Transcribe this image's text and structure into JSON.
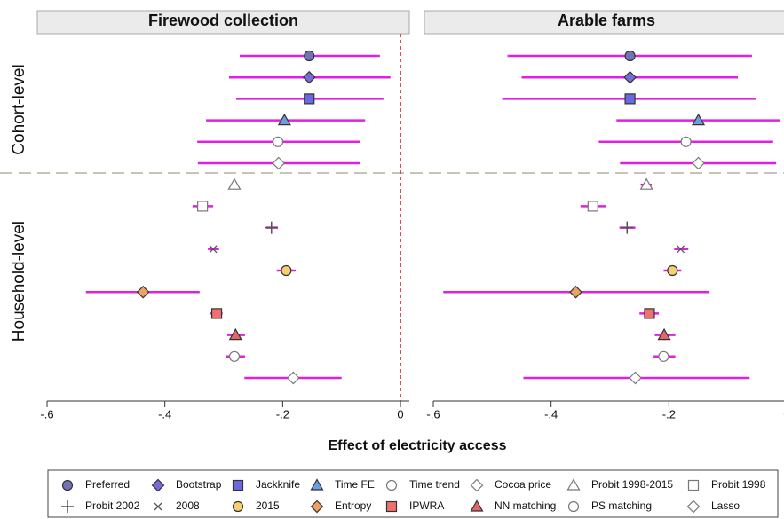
{
  "chart_data": {
    "type": "errorbar",
    "panels": [
      "Firewood collection",
      "Arable farms"
    ],
    "xlabel": "Effect of electricity access",
    "xlim": [
      -0.6,
      0.015
    ],
    "xticks": [
      {
        "value": -0.6,
        "label": "-.6"
      },
      {
        "value": -0.4,
        "label": "-.4"
      },
      {
        "value": -0.2,
        "label": "-.2"
      },
      0
    ],
    "refline": 0,
    "ci_color": "#e020e0",
    "series": [
      {
        "name": "Preferred",
        "group": "Cohort-level",
        "marker": "circle",
        "color": "#7272b8",
        "values": [
          -0.155,
          -0.266
        ],
        "lower": [
          -0.273,
          -0.474
        ],
        "upper": [
          -0.035,
          -0.059
        ]
      },
      {
        "name": "Bootstrap",
        "group": "Cohort-level",
        "marker": "diamond",
        "color": "#7a6ad8",
        "values": [
          -0.155,
          -0.266
        ],
        "lower": [
          -0.291,
          -0.45
        ],
        "upper": [
          -0.017,
          -0.083
        ]
      },
      {
        "name": "Jackknife",
        "group": "Cohort-level",
        "marker": "square",
        "color": "#6a6ae0",
        "values": [
          -0.155,
          -0.266
        ],
        "lower": [
          -0.279,
          -0.483
        ],
        "upper": [
          -0.029,
          -0.053
        ]
      },
      {
        "name": "Time FE",
        "group": "Cohort-level",
        "marker": "triangle",
        "color": "#6a9ee0",
        "values": [
          -0.197,
          -0.15
        ],
        "lower": [
          -0.33,
          -0.289
        ],
        "upper": [
          -0.06,
          -0.011
        ]
      },
      {
        "name": "Time trend",
        "group": "Cohort-level",
        "marker": "circle",
        "color": "none",
        "values": [
          -0.208,
          -0.171
        ],
        "lower": [
          -0.345,
          -0.319
        ],
        "upper": [
          -0.069,
          -0.023
        ]
      },
      {
        "name": "Cocoa price",
        "group": "Cohort-level",
        "marker": "diamond",
        "color": "none",
        "values": [
          -0.207,
          -0.15
        ],
        "lower": [
          -0.344,
          -0.283
        ],
        "upper": [
          -0.068,
          -0.018
        ]
      },
      {
        "name": "Probit 1998-2015",
        "group": "Household-level",
        "marker": "triangle",
        "color": "none",
        "values": [
          -0.282,
          -0.238
        ],
        "lower": [
          -0.288,
          -0.248
        ],
        "upper": [
          -0.276,
          -0.229
        ]
      },
      {
        "name": "Probit 1998",
        "group": "Household-level",
        "marker": "square",
        "color": "none",
        "values": [
          -0.336,
          -0.329
        ],
        "lower": [
          -0.353,
          -0.35
        ],
        "upper": [
          -0.318,
          -0.307
        ]
      },
      {
        "name": "Probit 2002",
        "group": "Household-level",
        "marker": "plus",
        "color": "none",
        "values": [
          -0.219,
          -0.271
        ],
        "lower": [
          -0.228,
          -0.284
        ],
        "upper": [
          -0.208,
          -0.257
        ]
      },
      {
        "name": "2008",
        "group": "Household-level",
        "marker": "cross",
        "color": "none",
        "values": [
          -0.318,
          -0.18
        ],
        "lower": [
          -0.327,
          -0.191
        ],
        "upper": [
          -0.308,
          -0.167
        ]
      },
      {
        "name": "2015",
        "group": "Household-level",
        "marker": "circle",
        "color": "#f5d070",
        "values": [
          -0.194,
          -0.194
        ],
        "lower": [
          -0.21,
          -0.209
        ],
        "upper": [
          -0.178,
          -0.179
        ]
      },
      {
        "name": "Entropy",
        "group": "Household-level",
        "marker": "diamond",
        "color": "#f0a060",
        "values": [
          -0.437,
          -0.358
        ],
        "lower": [
          -0.534,
          -0.583
        ],
        "upper": [
          -0.341,
          -0.131
        ]
      },
      {
        "name": "IPWRA",
        "group": "Household-level",
        "marker": "square",
        "color": "#f07070",
        "values": [
          -0.312,
          -0.233
        ],
        "lower": [
          -0.323,
          -0.25
        ],
        "upper": [
          -0.302,
          -0.217
        ]
      },
      {
        "name": "NN matching",
        "group": "Household-level",
        "marker": "triangle",
        "color": "#e06868",
        "values": [
          -0.28,
          -0.208
        ],
        "lower": [
          -0.294,
          -0.224
        ],
        "upper": [
          -0.264,
          -0.189
        ]
      },
      {
        "name": "PS matching",
        "group": "Household-level",
        "marker": "circle",
        "color": "none",
        "values": [
          -0.282,
          -0.209
        ],
        "lower": [
          -0.297,
          -0.226
        ],
        "upper": [
          -0.264,
          -0.189
        ]
      },
      {
        "name": "Lasso",
        "group": "Household-level",
        "marker": "diamond",
        "color": "none",
        "values": [
          -0.182,
          -0.257
        ],
        "lower": [
          -0.265,
          -0.447
        ],
        "upper": [
          -0.1,
          -0.063
        ]
      }
    ]
  }
}
